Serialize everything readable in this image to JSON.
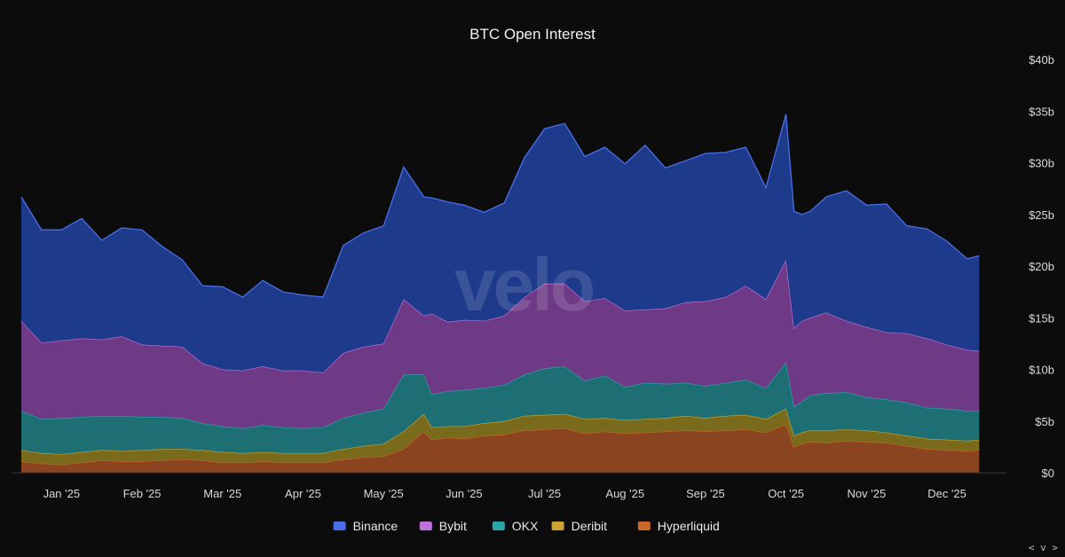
{
  "chart_data": {
    "type": "area",
    "stacked": true,
    "title": "BTC Open Interest",
    "watermark": "velo",
    "x_ticks": [
      "Jan '25",
      "Feb '25",
      "Mar '25",
      "Apr '25",
      "May '25",
      "Jun '25",
      "Jul '25",
      "Aug '25",
      "Sep '25",
      "Oct '25",
      "Nov '25",
      "Dec '25"
    ],
    "y_ticks": [
      "$0",
      "$5b",
      "$10b",
      "$15b",
      "$20b",
      "$25b",
      "$30b",
      "$35b",
      "$40b"
    ],
    "ylim": [
      0,
      40
    ],
    "y_unit": "billions USD",
    "x_months": [
      -0.5,
      -0.25,
      0,
      0.25,
      0.5,
      0.75,
      1,
      1.25,
      1.5,
      1.75,
      2,
      2.25,
      2.5,
      2.75,
      3,
      3.25,
      3.5,
      3.75,
      4,
      4.25,
      4.5,
      4.6,
      4.8,
      5,
      5.25,
      5.5,
      5.75,
      6,
      6.25,
      6.5,
      6.75,
      7,
      7.25,
      7.5,
      7.75,
      8,
      8.25,
      8.5,
      8.75,
      9,
      9.1,
      9.2,
      9.3,
      9.5,
      9.75,
      10,
      10.25,
      10.5,
      10.75,
      11,
      11.25,
      11.4
    ],
    "legend": {
      "position": "bottom-center"
    },
    "grid": false,
    "series": [
      {
        "name": "Hyperliquid",
        "color": "#c9672a",
        "fill": "#8a4420",
        "values": [
          1.1,
          0.9,
          0.8,
          1.0,
          1.2,
          1.1,
          1.1,
          1.2,
          1.3,
          1.2,
          1.0,
          1.0,
          1.1,
          1.0,
          1.0,
          1.0,
          1.3,
          1.5,
          1.6,
          2.3,
          4.0,
          3.2,
          3.4,
          3.3,
          3.6,
          3.7,
          4.1,
          4.2,
          4.3,
          3.8,
          4.0,
          3.8,
          3.9,
          4.0,
          4.1,
          4.0,
          4.1,
          4.2,
          3.9,
          4.7,
          2.5,
          2.8,
          3.0,
          2.9,
          3.1,
          3.0,
          2.9,
          2.6,
          2.3,
          2.2,
          2.1,
          2.2
        ]
      },
      {
        "name": "Deribit",
        "color": "#c9a231",
        "fill": "#7a6a1c",
        "values": [
          1.1,
          1.0,
          1.0,
          1.0,
          1.0,
          1.0,
          1.1,
          1.1,
          1.0,
          1.0,
          1.0,
          0.9,
          0.9,
          0.9,
          0.9,
          0.9,
          1.0,
          1.1,
          1.2,
          1.7,
          1.7,
          1.2,
          1.1,
          1.2,
          1.2,
          1.3,
          1.4,
          1.4,
          1.4,
          1.4,
          1.3,
          1.3,
          1.3,
          1.3,
          1.4,
          1.3,
          1.4,
          1.4,
          1.3,
          1.5,
          1.1,
          1.1,
          1.1,
          1.2,
          1.1,
          1.1,
          1.0,
          1.0,
          1.0,
          1.0,
          1.0,
          1.0
        ]
      },
      {
        "name": "OKX",
        "color": "#2aa5a8",
        "fill": "#1d6f74",
        "values": [
          3.8,
          3.3,
          3.5,
          3.4,
          3.3,
          3.4,
          3.2,
          3.1,
          3.0,
          2.6,
          2.5,
          2.4,
          2.6,
          2.5,
          2.4,
          2.5,
          3.0,
          3.2,
          3.4,
          5.5,
          3.8,
          3.2,
          3.4,
          3.5,
          3.4,
          3.5,
          4.0,
          4.5,
          4.6,
          3.7,
          4.1,
          3.2,
          3.5,
          3.3,
          3.2,
          3.1,
          3.2,
          3.4,
          3.0,
          4.5,
          2.8,
          3.0,
          3.4,
          3.6,
          3.6,
          3.2,
          3.2,
          3.2,
          3.0,
          3.0,
          2.9,
          2.8
        ]
      },
      {
        "name": "Bybit",
        "color": "#c070dc",
        "fill": "#6e3a86",
        "values": [
          8.7,
          7.4,
          7.5,
          7.6,
          7.4,
          7.7,
          7.0,
          6.9,
          6.9,
          5.8,
          5.5,
          5.6,
          5.7,
          5.5,
          5.6,
          5.3,
          6.3,
          6.4,
          6.3,
          7.3,
          5.7,
          7.8,
          6.7,
          6.8,
          6.5,
          6.7,
          7.5,
          8.2,
          8.0,
          7.7,
          7.5,
          7.4,
          7.1,
          7.3,
          7.8,
          8.2,
          8.3,
          9.1,
          8.6,
          9.9,
          7.6,
          7.8,
          7.5,
          7.8,
          6.9,
          6.8,
          6.5,
          6.7,
          6.7,
          6.2,
          5.9,
          5.8
        ]
      },
      {
        "name": "Binance",
        "color": "#4a6ee8",
        "fill": "#1e3a8a",
        "values": [
          12.0,
          10.9,
          10.7,
          11.6,
          9.6,
          10.5,
          11.1,
          9.6,
          8.4,
          7.5,
          8.0,
          7.1,
          8.3,
          7.6,
          7.3,
          7.3,
          10.4,
          11.0,
          11.4,
          12.8,
          11.5,
          11.2,
          11.6,
          11.1,
          10.5,
          10.9,
          13.5,
          15.0,
          15.5,
          14.0,
          14.6,
          14.2,
          15.9,
          13.6,
          13.7,
          14.3,
          14.0,
          13.4,
          10.8,
          14.1,
          11.3,
          10.3,
          10.3,
          11.2,
          12.6,
          11.8,
          12.4,
          10.4,
          10.6,
          10.0,
          8.8,
          9.2
        ]
      }
    ]
  }
}
